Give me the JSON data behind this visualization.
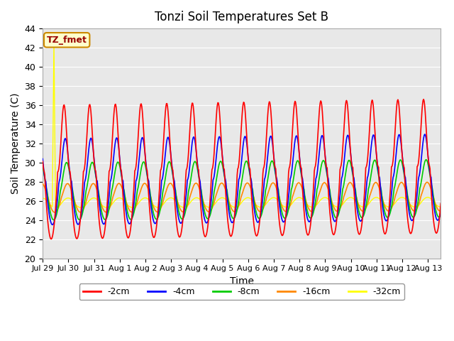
{
  "title": "Tonzi Soil Temperatures Set B",
  "xlabel": "Time",
  "ylabel": "Soil Temperature (C)",
  "ylim": [
    20,
    44
  ],
  "yticks": [
    20,
    22,
    24,
    26,
    28,
    30,
    32,
    34,
    36,
    38,
    40,
    42,
    44
  ],
  "background_color": "#e8e8e8",
  "series_colors": {
    "-2cm": "#ff0000",
    "-4cm": "#0000ff",
    "-8cm": "#00cc00",
    "-16cm": "#ff8800",
    "-32cm": "#ffff00"
  },
  "legend_label": "TZ_fmet",
  "legend_bg": "#ffffcc",
  "legend_border": "#cc8800",
  "legend_text_color": "#990000",
  "x_tick_labels": [
    "Jul 29",
    "Jul 30",
    "Jul 31",
    "Aug 1",
    "Aug 2",
    "Aug 3",
    "Aug 4",
    "Aug 5",
    "Aug 6",
    "Aug 7",
    "Aug 8",
    "Aug 9",
    "Aug 10",
    "Aug 11",
    "Aug 12",
    "Aug 13"
  ],
  "num_days": 15.5,
  "samples_per_day": 48,
  "base_2cm": 29.0,
  "amp_2cm": 7.0,
  "base_4cm": 28.0,
  "amp_4cm": 4.5,
  "base_8cm": 27.0,
  "amp_8cm": 3.0,
  "base_16cm": 26.3,
  "amp_16cm": 1.5,
  "base_32cm": 25.8,
  "amp_32cm": 0.5,
  "phase_2cm": 0.58,
  "phase_4cm": 0.63,
  "phase_8cm": 0.68,
  "phase_16cm": 0.72,
  "phase_32cm": 0.74
}
